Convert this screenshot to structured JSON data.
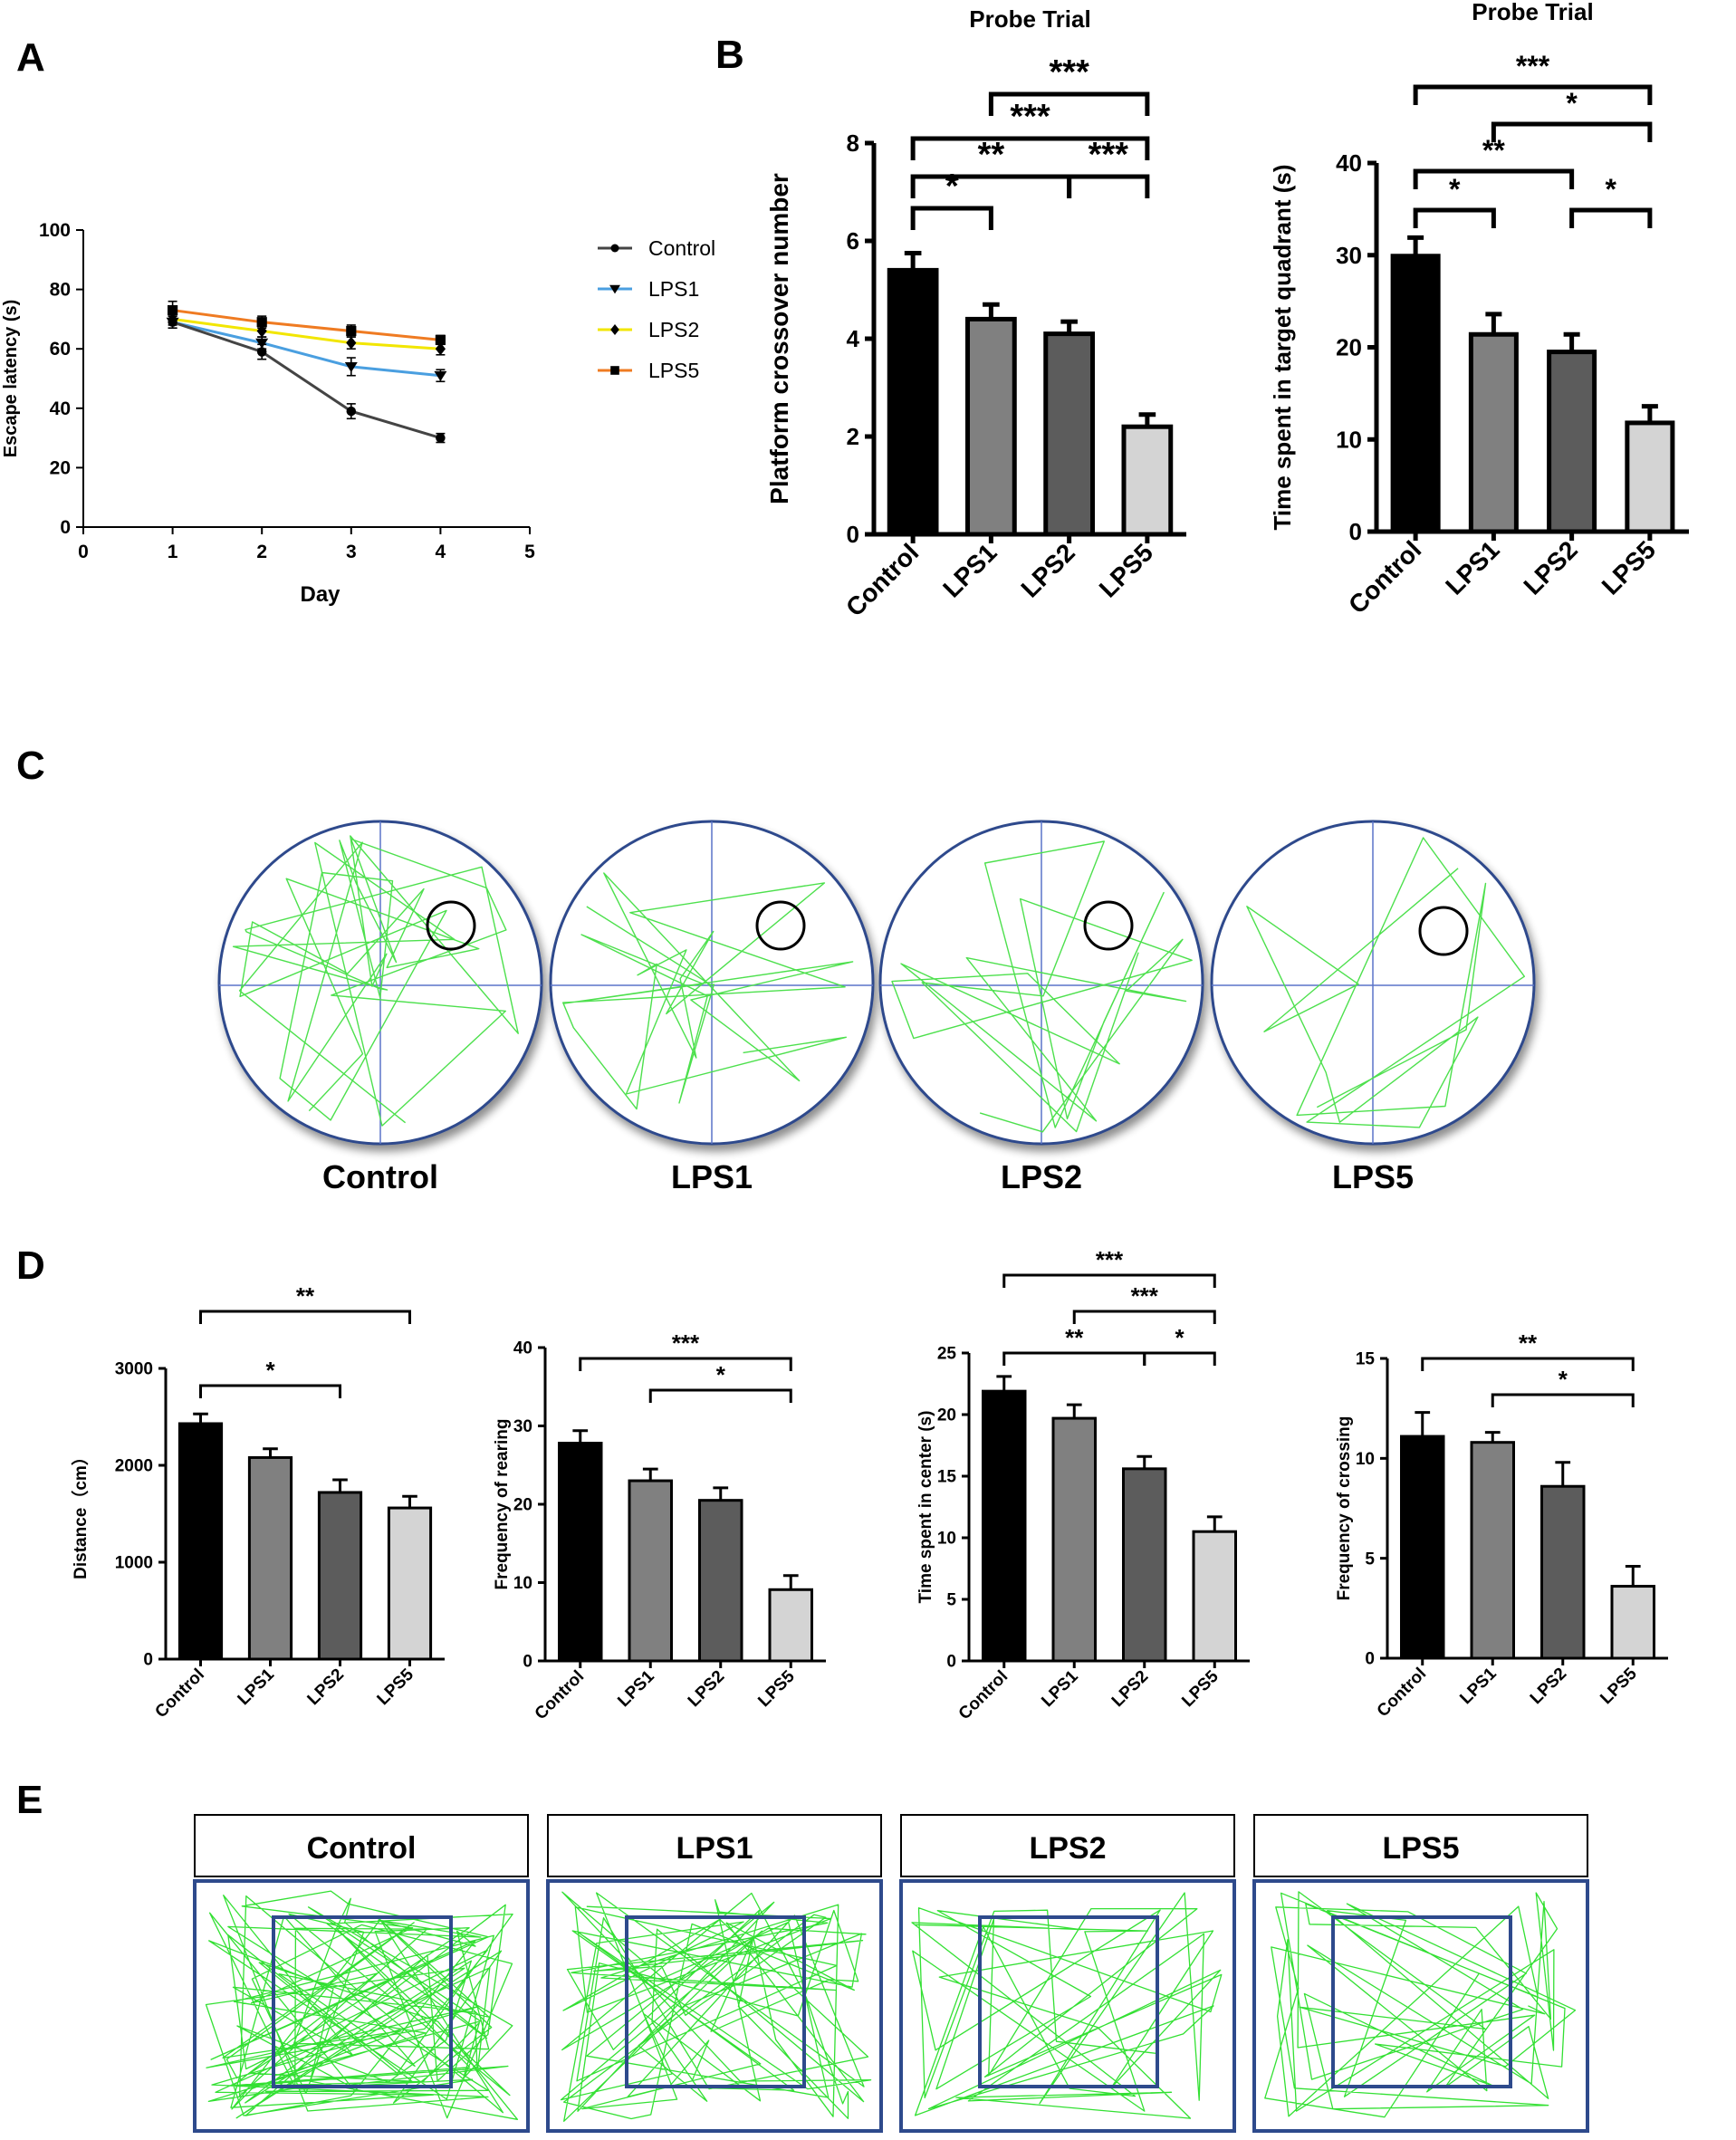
{
  "panel_labels": [
    "A",
    "B",
    "C",
    "D",
    "E"
  ],
  "chart_data": [
    {
      "id": "A",
      "type": "line",
      "title": "",
      "xlabel": "Day",
      "ylabel": "Escape latency (s)",
      "xlim": [
        0,
        5
      ],
      "ylim": [
        0,
        100
      ],
      "xticks": [
        0,
        1,
        2,
        3,
        4,
        5
      ],
      "yticks": [
        0,
        20,
        40,
        60,
        80,
        100
      ],
      "x": [
        1,
        2,
        3,
        4
      ],
      "legend_position": "right",
      "series": [
        {
          "name": "Control",
          "color": "#444444",
          "marker": "circle",
          "values": [
            69,
            59,
            39,
            30
          ],
          "errors": [
            2,
            2.5,
            2.5,
            1.5
          ]
        },
        {
          "name": "LPS1",
          "color": "#4a9fe0",
          "marker": "triangle-down",
          "values": [
            69,
            62,
            54,
            51
          ],
          "errors": [
            2,
            2,
            3,
            2
          ]
        },
        {
          "name": "LPS2",
          "color": "#f2e600",
          "marker": "diamond",
          "values": [
            70,
            66,
            62,
            60
          ],
          "errors": [
            2,
            2,
            2,
            2
          ]
        },
        {
          "name": "LPS5",
          "color": "#ef7b22",
          "marker": "square",
          "values": [
            73,
            69,
            66,
            63
          ],
          "errors": [
            3,
            2,
            2,
            1.5
          ]
        }
      ]
    },
    {
      "id": "B1",
      "type": "bar",
      "title": "Probe Trial",
      "xlabel": "",
      "ylabel": "Platform crossover number",
      "categories": [
        "Control",
        "LPS1",
        "LPS2",
        "LPS5"
      ],
      "values": [
        5.4,
        4.4,
        4.1,
        2.2
      ],
      "errors": [
        0.35,
        0.3,
        0.25,
        0.25
      ],
      "colors": [
        "#000000",
        "#808080",
        "#5c5c5c",
        "#d4d4d4"
      ],
      "ylim": [
        0,
        8
      ],
      "yticks": [
        0,
        2,
        4,
        6,
        8
      ],
      "significance": [
        {
          "from": 0,
          "to": 1,
          "label": "*"
        },
        {
          "from": 0,
          "to": 2,
          "label": "**"
        },
        {
          "from": 2,
          "to": 3,
          "label": "***"
        },
        {
          "from": 0,
          "to": 3,
          "label": "***"
        },
        {
          "from": 1,
          "to": 3,
          "label": "***"
        }
      ]
    },
    {
      "id": "B2",
      "type": "bar",
      "title": "Probe Trial",
      "xlabel": "",
      "ylabel": "Time spent in target  quadrant (s)",
      "categories": [
        "Control",
        "LPS1",
        "LPS2",
        "LPS5"
      ],
      "values": [
        29.9,
        21.4,
        19.5,
        11.8
      ],
      "errors": [
        2.0,
        2.2,
        1.9,
        1.8
      ],
      "colors": [
        "#000000",
        "#808080",
        "#5c5c5c",
        "#d4d4d4"
      ],
      "ylim": [
        0,
        40
      ],
      "yticks": [
        0,
        10,
        20,
        30,
        40
      ],
      "significance": [
        {
          "from": 0,
          "to": 1,
          "label": "*"
        },
        {
          "from": 2,
          "to": 3,
          "label": "*"
        },
        {
          "from": 0,
          "to": 2,
          "label": "**"
        },
        {
          "from": 1,
          "to": 3,
          "label": "*"
        },
        {
          "from": 0,
          "to": 3,
          "label": "***"
        }
      ]
    },
    {
      "id": "D1",
      "type": "bar",
      "title": "",
      "xlabel": "",
      "ylabel": "Distance（cm）",
      "categories": [
        "Control",
        "LPS1",
        "LPS2",
        "LPS5"
      ],
      "values": [
        2430,
        2080,
        1720,
        1560
      ],
      "errors": [
        100,
        90,
        130,
        120
      ],
      "colors": [
        "#000000",
        "#808080",
        "#5c5c5c",
        "#d4d4d4"
      ],
      "ylim": [
        0,
        3000
      ],
      "yticks": [
        0,
        1000,
        2000,
        3000
      ],
      "significance": [
        {
          "from": 0,
          "to": 2,
          "label": "*"
        },
        {
          "from": 0,
          "to": 3,
          "label": "**"
        }
      ]
    },
    {
      "id": "D2",
      "type": "bar",
      "title": "",
      "xlabel": "",
      "ylabel": "Frequency of rearing",
      "categories": [
        "Control",
        "LPS1",
        "LPS2",
        "LPS5"
      ],
      "values": [
        27.8,
        23.0,
        20.5,
        9.1
      ],
      "errors": [
        1.6,
        1.5,
        1.6,
        1.8
      ],
      "colors": [
        "#000000",
        "#808080",
        "#5c5c5c",
        "#d4d4d4"
      ],
      "ylim": [
        0,
        40
      ],
      "yticks": [
        0,
        10,
        20,
        30,
        40
      ],
      "significance": [
        {
          "from": 1,
          "to": 3,
          "label": "*"
        },
        {
          "from": 0,
          "to": 3,
          "label": "***"
        }
      ]
    },
    {
      "id": "D3",
      "type": "bar",
      "title": "",
      "xlabel": "",
      "ylabel": "Time spent in center (s)",
      "categories": [
        "Control",
        "LPS1",
        "LPS2",
        "LPS5"
      ],
      "values": [
        21.9,
        19.7,
        15.6,
        10.5
      ],
      "errors": [
        1.2,
        1.1,
        1.0,
        1.2
      ],
      "colors": [
        "#000000",
        "#808080",
        "#5c5c5c",
        "#d4d4d4"
      ],
      "ylim": [
        0,
        25
      ],
      "yticks": [
        0,
        5,
        10,
        15,
        20,
        25
      ],
      "significance": [
        {
          "from": 0,
          "to": 2,
          "label": "**"
        },
        {
          "from": 2,
          "to": 3,
          "label": "*"
        },
        {
          "from": 1,
          "to": 3,
          "label": "***"
        },
        {
          "from": 0,
          "to": 3,
          "label": "***"
        }
      ]
    },
    {
      "id": "D4",
      "type": "bar",
      "title": "",
      "xlabel": "",
      "ylabel": "Frequency of crossing",
      "categories": [
        "Control",
        "LPS1",
        "LPS2",
        "LPS5"
      ],
      "values": [
        11.1,
        10.8,
        8.6,
        3.6
      ],
      "errors": [
        1.2,
        0.5,
        1.2,
        1.0
      ],
      "colors": [
        "#000000",
        "#808080",
        "#5c5c5c",
        "#d4d4d4"
      ],
      "ylim": [
        0,
        15
      ],
      "yticks": [
        0,
        5,
        10,
        15
      ],
      "significance": [
        {
          "from": 1,
          "to": 3,
          "label": "*"
        },
        {
          "from": 0,
          "to": 3,
          "label": "**"
        }
      ]
    }
  ],
  "panel_C": {
    "pool_labels": [
      "Control",
      "LPS1",
      "LPS2",
      "LPS5"
    ],
    "pool_color": "#2e4a8c",
    "path_color": "#4de04d"
  },
  "panel_E": {
    "arena_labels": [
      "Control",
      "LPS1",
      "LPS2",
      "LPS5"
    ],
    "arena_color": "#2e4a8c",
    "path_color": "#33e033"
  }
}
